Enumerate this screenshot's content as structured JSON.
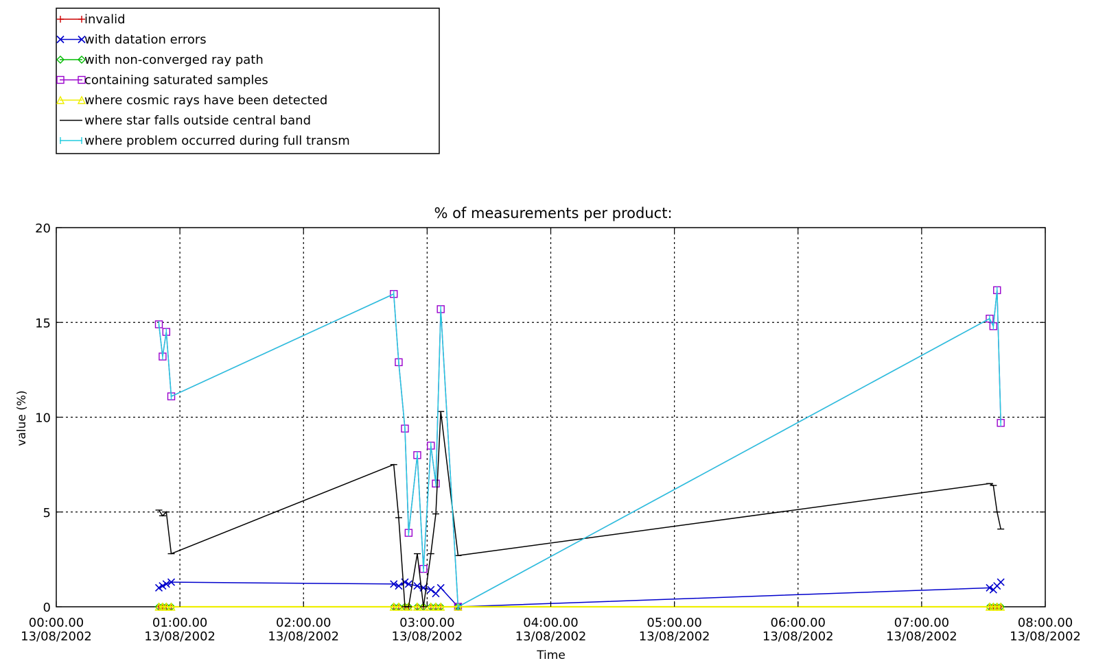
{
  "chart_data": {
    "type": "line",
    "title": "% of measurements per product:",
    "xlabel": "Time",
    "ylabel": "value (%)",
    "xlim": [
      0,
      8
    ],
    "ylim": [
      0,
      20
    ],
    "grid": true,
    "legend_position": "top-left, above plot",
    "x_ticks": [
      {
        "value": 0,
        "time": "00:00.00",
        "date": "13/08/2002"
      },
      {
        "value": 1,
        "time": "01:00.00",
        "date": "13/08/2002"
      },
      {
        "value": 2,
        "time": "02:00.00",
        "date": "13/08/2002"
      },
      {
        "value": 3,
        "time": "03:00.00",
        "date": "13/08/2002"
      },
      {
        "value": 4,
        "time": "04:00.00",
        "date": "13/08/2002"
      },
      {
        "value": 5,
        "time": "05:00.00",
        "date": "13/08/2002"
      },
      {
        "value": 6,
        "time": "06:00.00",
        "date": "13/08/2002"
      },
      {
        "value": 7,
        "time": "07:00.00",
        "date": "13/08/2002"
      },
      {
        "value": 8,
        "time": "08:00.00",
        "date": "13/08/2002"
      }
    ],
    "y_ticks": [
      0,
      5,
      10,
      15,
      20
    ],
    "series": [
      {
        "name": "invalid",
        "color": "#cc0000",
        "marker": "plus",
        "x": [
          0.83,
          0.86,
          0.89,
          0.93,
          2.73,
          2.77,
          2.82,
          2.85,
          2.92,
          2.97,
          3.03,
          3.07,
          3.11,
          3.25,
          7.55,
          7.58,
          7.61,
          7.64
        ],
        "y": [
          0,
          0,
          0,
          0,
          0,
          0,
          0,
          0,
          0,
          0,
          0,
          0,
          0,
          0,
          0,
          0,
          0,
          0
        ]
      },
      {
        "name": "with datation errors",
        "color": "#0000cc",
        "marker": "x",
        "x": [
          0.83,
          0.86,
          0.89,
          0.93,
          2.73,
          2.77,
          2.82,
          2.85,
          2.92,
          2.97,
          3.03,
          3.07,
          3.11,
          3.25,
          7.55,
          7.58,
          7.61,
          7.64
        ],
        "y": [
          1.0,
          1.1,
          1.2,
          1.3,
          1.2,
          1.1,
          1.3,
          1.2,
          1.1,
          1.0,
          0.9,
          0.7,
          1.0,
          0,
          1.0,
          0.9,
          1.1,
          1.3
        ]
      },
      {
        "name": "with non-converged ray path",
        "color": "#00bb00",
        "marker": "diamond",
        "x": [
          0.83,
          0.86,
          0.89,
          0.93,
          2.73,
          2.77,
          2.82,
          2.85,
          2.92,
          2.97,
          3.03,
          3.07,
          3.11,
          3.25,
          7.55,
          7.58,
          7.61,
          7.64
        ],
        "y": [
          0,
          0,
          0,
          0,
          0,
          0,
          0,
          0,
          0,
          0,
          0,
          0,
          0,
          0,
          0,
          0,
          0,
          0
        ]
      },
      {
        "name": "containing saturated samples",
        "color": "#9900cc",
        "marker": "square",
        "x": [
          0.83,
          0.86,
          0.89,
          0.93,
          2.73,
          2.77,
          2.82,
          2.85,
          2.92,
          2.97,
          3.03,
          3.07,
          3.11,
          3.25,
          7.55,
          7.58,
          7.61,
          7.64
        ],
        "y": [
          14.9,
          13.2,
          14.5,
          11.1,
          16.5,
          12.9,
          9.4,
          3.9,
          8.0,
          2.0,
          8.5,
          6.5,
          15.7,
          0,
          15.2,
          14.8,
          16.7,
          9.7
        ]
      },
      {
        "name": "where cosmic rays have been detected",
        "color": "#eeee00",
        "marker": "triangle",
        "x": [
          0.83,
          0.86,
          0.89,
          0.93,
          2.73,
          2.77,
          2.82,
          2.85,
          2.92,
          2.97,
          3.03,
          3.07,
          3.11,
          3.25,
          7.55,
          7.58,
          7.61,
          7.64
        ],
        "y": [
          0,
          0,
          0,
          0,
          0,
          0,
          0,
          0,
          0,
          0,
          0,
          0,
          0,
          0,
          0,
          0,
          0,
          0
        ]
      },
      {
        "name": "where star falls outside central band",
        "color": "#000000",
        "marker": "plus",
        "x": [
          0.83,
          0.86,
          0.89,
          0.93,
          2.73,
          2.77,
          2.82,
          2.85,
          2.92,
          2.97,
          3.03,
          3.07,
          3.11,
          3.25,
          7.55,
          7.58,
          7.61,
          7.64
        ],
        "y": [
          5.1,
          4.8,
          5.0,
          2.8,
          7.5,
          4.7,
          0,
          0,
          2.8,
          0,
          2.8,
          4.9,
          10.3,
          2.7,
          6.5,
          6.4,
          5.0,
          4.1
        ]
      },
      {
        "name": "where problem occurred during full transm",
        "color": "#22ccdd",
        "marker": "bar",
        "x": [
          0.83,
          0.86,
          0.89,
          0.93,
          2.73,
          2.77,
          2.82,
          2.85,
          2.92,
          2.97,
          3.03,
          3.07,
          3.11,
          3.25,
          7.55,
          7.58,
          7.61,
          7.64
        ],
        "y": [
          14.9,
          13.2,
          14.5,
          11.1,
          16.5,
          12.9,
          9.4,
          3.9,
          8.0,
          2.0,
          8.5,
          6.5,
          15.7,
          0,
          15.2,
          14.8,
          16.7,
          9.7
        ]
      }
    ]
  }
}
